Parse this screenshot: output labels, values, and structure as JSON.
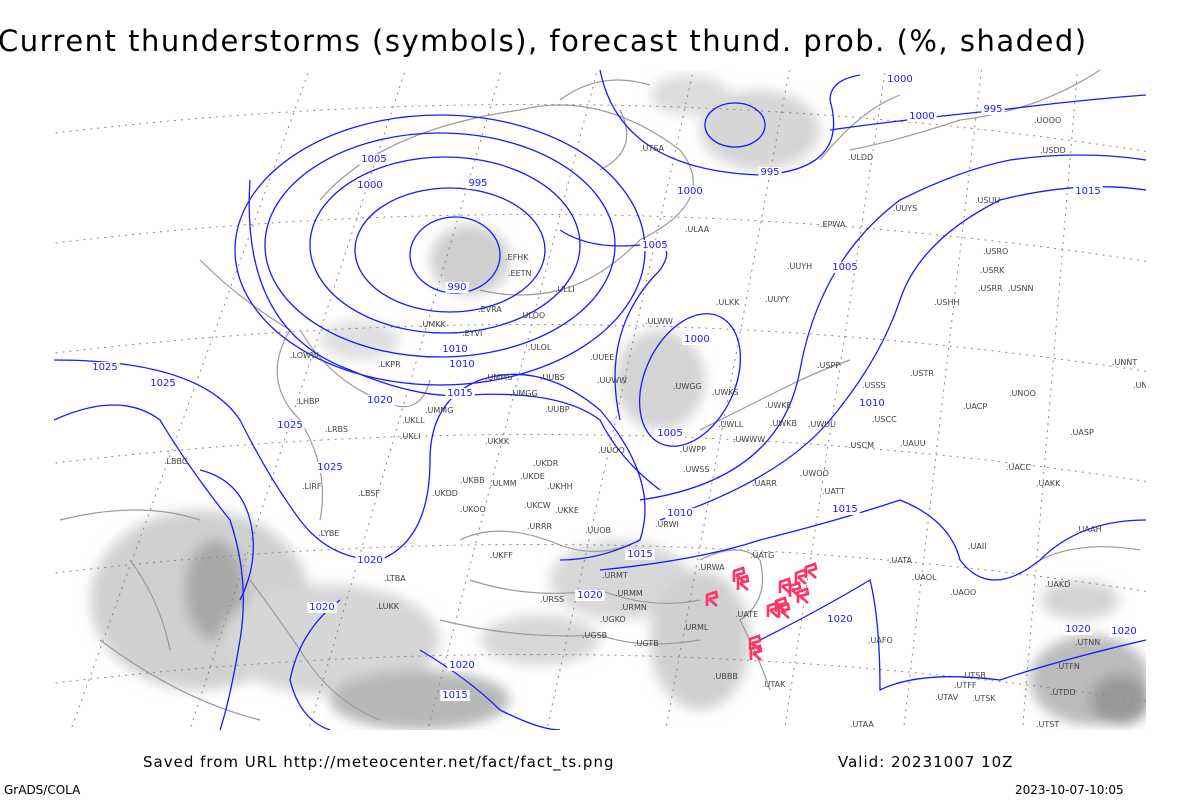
{
  "title": "Current thunderstorms (symbols), forecast thund. prob. (%, shaded)",
  "footer": {
    "source": "Saved from URL http://meteocenter.net/fact/fact_ts.png",
    "valid": "Valid: 20231007 10Z",
    "software": "GrADS/COLA",
    "timestamp": "2023-10-07-10:05"
  },
  "colors": {
    "isobar": "#1a1aff",
    "coastline": "#9a9a9a",
    "thunderstorm": "#ff3366",
    "shading_light": "#d8d8d8",
    "shading_dark": "#a0a0a0"
  },
  "isobar_labels": [
    "990",
    "995",
    "995",
    "995",
    "1000",
    "1000",
    "1000",
    "1000",
    "1005",
    "1005",
    "1005",
    "1005",
    "1010",
    "1010",
    "1010",
    "1015",
    "1015",
    "1015",
    "1015",
    "1020",
    "1020",
    "1020",
    "1020",
    "1020",
    "1025",
    "1025",
    "1025",
    "1025",
    "1000",
    "1010",
    "1015",
    "1020",
    "1020",
    "1020"
  ],
  "stations": [
    "ULAA",
    "ULLI",
    "ULOO",
    "ULOL",
    "EFHK",
    "EETN",
    "EVRA",
    "UMKK",
    "EYVI",
    "UMMS",
    "UMGG",
    "UMMG",
    "UKLL",
    "UKLI",
    "UKKK",
    "UKBB",
    "UKFF",
    "UKOO",
    "UKHH",
    "UUEE",
    "UUWW",
    "UUBS",
    "UUBP",
    "UUOO",
    "UWGG",
    "UWKS",
    "UWKE",
    "UWKB",
    "UWUU",
    "UWWW",
    "UWLL",
    "UWPP",
    "UWSS",
    "URWA",
    "URWI",
    "URSS",
    "URMM",
    "URMT",
    "URMN",
    "URML",
    "UGSB",
    "UGKO",
    "UGTB",
    "UBBB",
    "UATG",
    "UATE",
    "UATT",
    "UARR",
    "UWOO",
    "USSS",
    "USCC",
    "USCM",
    "UAUU",
    "USTR",
    "USPP",
    "UUYY",
    "UUYH",
    "ULKK",
    "ULWW",
    "USHH",
    "USRR",
    "USRK",
    "USNN",
    "USRO",
    "UNNT",
    "UNBB",
    "UACC",
    "UAKK",
    "UASP",
    "UAAH",
    "UAKD",
    "UAOL",
    "UAOO",
    "UATA",
    "UTAK",
    "UTAA",
    "UTAV",
    "UTSK",
    "UTDD",
    "UTST",
    "UAII",
    "UACP",
    "UNOO",
    "USUU",
    "ULDD",
    "UOOO",
    "USDD",
    "UUYS",
    "EPWA",
    "LKPR",
    "LOWW",
    "LHBP",
    "LRBS",
    "LBSF",
    "LYBE",
    "LIRF",
    "LBBG",
    "LTBA",
    "LUKK",
    "UKDD",
    "UKDE",
    "UKCW",
    "UKKE",
    "URRR",
    "UUOB",
    "UKDR",
    "ULMM",
    "UTSA",
    "UTSB",
    "UTFF",
    "UTFN",
    "UTNN",
    "UAFO"
  ],
  "thunderstorm_icon": "thunderstorm-symbol-icon"
}
